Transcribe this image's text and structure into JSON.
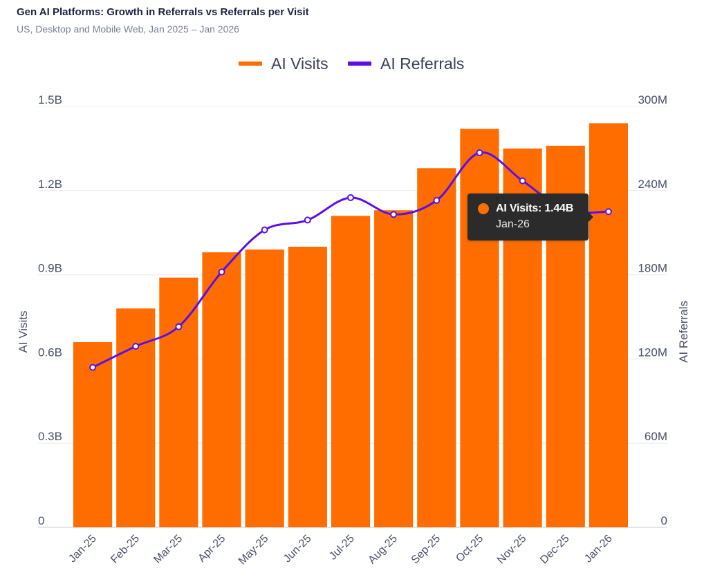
{
  "header": {
    "title": "Gen AI Platforms: Growth in Referrals vs Referrals per Visit",
    "subtitle": "US, Desktop and Mobile Web, Jan 2025 – Jan 2026"
  },
  "tooltip": {
    "label": "AI Visits: 1.44B",
    "category": "Jan-26"
  },
  "colors": {
    "visits": "#ff6d00",
    "referrals": "#5b0fe6",
    "grid": "#ececf0"
  },
  "chart_data": {
    "type": "bar",
    "categories": [
      "Jan-25",
      "Feb-25",
      "Mar-25",
      "Apr-25",
      "May-25",
      "Jun-25",
      "Jul-25",
      "Aug-25",
      "Sep-25",
      "Oct-25",
      "Nov-25",
      "Dec-25",
      "Jan-26"
    ],
    "series": [
      {
        "name": "AI Visits",
        "type": "bar",
        "axis": "left",
        "values": [
          0.66,
          0.78,
          0.89,
          0.98,
          0.99,
          1.0,
          1.11,
          1.13,
          1.28,
          1.42,
          1.35,
          1.36,
          1.44
        ]
      },
      {
        "name": "AI Referrals",
        "type": "line",
        "axis": "right",
        "values": [
          114,
          129,
          143,
          182,
          212,
          219,
          235,
          223,
          233,
          267,
          247,
          226,
          225
        ]
      }
    ],
    "y_left": {
      "label": "AI Visits",
      "range": [
        0,
        1.5
      ],
      "ticks": [
        0,
        0.3,
        0.6,
        0.9,
        1.2,
        1.5
      ],
      "tick_labels": [
        "0",
        "0.3B",
        "0.6B",
        "0.9B",
        "1.2B",
        "1.5B"
      ]
    },
    "y_right": {
      "label": "AI Referrals",
      "range": [
        0,
        300
      ],
      "ticks": [
        0,
        60,
        120,
        180,
        240,
        300
      ],
      "tick_labels": [
        "0",
        "60M",
        "120M",
        "180M",
        "240M",
        "300M"
      ]
    },
    "legend": {
      "placement": "top-center",
      "entries": [
        "AI Visits",
        "AI Referrals"
      ]
    },
    "grid": true
  }
}
